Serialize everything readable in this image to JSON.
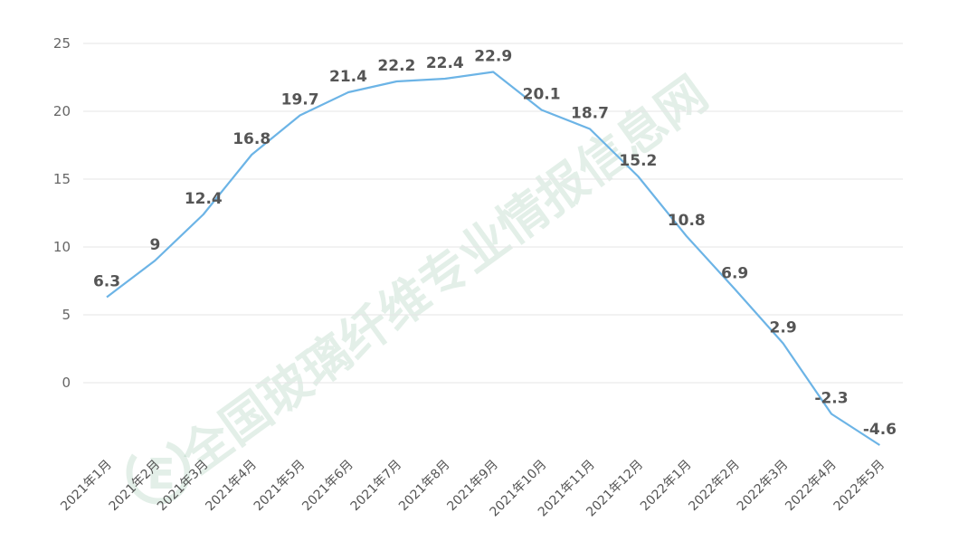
{
  "watermark": {
    "text": "全国玻璃纤维专业情报信息网",
    "logo_letter": "E"
  },
  "chart_data": {
    "type": "line",
    "title": "",
    "xlabel": "",
    "ylabel": "",
    "categories": [
      "2021年1月",
      "2021年2月",
      "2021年3月",
      "2021年4月",
      "2021年5月",
      "2021年6月",
      "2021年7月",
      "2021年8月",
      "2021年9月",
      "2021年10月",
      "2021年11月",
      "2021年12月",
      "2022年1月",
      "2022年2月",
      "2022年3月",
      "2022年4月",
      "2022年5月"
    ],
    "series": [
      {
        "name": "",
        "values": [
          6.3,
          9,
          12.4,
          16.8,
          19.7,
          21.4,
          22.2,
          22.4,
          22.9,
          20.1,
          18.7,
          15.2,
          10.8,
          6.9,
          2.9,
          -2.3,
          -4.6
        ],
        "labels": [
          "6.3",
          "9",
          "12.4",
          "16.8",
          "19.7",
          "21.4",
          "22.2",
          "22.4",
          "22.9",
          "20.1",
          "18.7",
          "15.2",
          "10.8",
          "6.9",
          "2.9",
          "-2.3",
          "-4.6"
        ],
        "color": "#6cb4e6"
      }
    ],
    "yticks": [
      "0",
      "5",
      "10",
      "15",
      "20",
      "25"
    ],
    "ylim": [
      -4.6,
      25
    ],
    "grid": true,
    "legend": "none"
  }
}
